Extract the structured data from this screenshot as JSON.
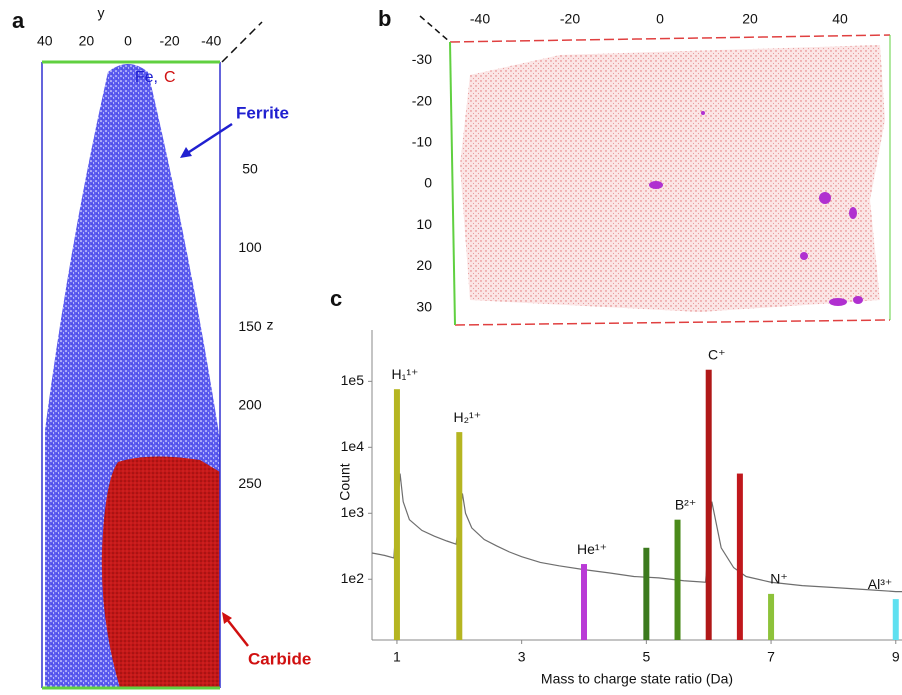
{
  "panel_a": {
    "label": "a",
    "y_axis_title": "y",
    "y_ticks": [
      40,
      20,
      0,
      -20,
      -40
    ],
    "z_axis_title": "z",
    "z_ticks": [
      50,
      100,
      150,
      200,
      250
    ],
    "legend_fe": "Fe,",
    "legend_c": "C",
    "annotation_ferrite": "Ferrite",
    "annotation_carbide": "Carbide"
  },
  "panel_b": {
    "label": "b",
    "x_ticks": [
      -40,
      -20,
      0,
      20,
      40
    ],
    "y_ticks": [
      -30,
      -20,
      -10,
      0,
      10,
      20,
      30
    ]
  },
  "chart_data": {
    "type": "line",
    "panel_label": "c",
    "x_label": "Mass to charge state ratio (Da)",
    "y_label": "Count",
    "log_y": true,
    "xlim": [
      0.6,
      9.1
    ],
    "xticks": [
      1,
      3,
      5,
      7,
      9
    ],
    "ylim": [
      12,
      600000
    ],
    "yticks": [
      {
        "value": 100,
        "label": "1e2"
      },
      {
        "value": 1000,
        "label": "1e3"
      },
      {
        "value": 10000,
        "label": "1e4"
      },
      {
        "value": 100000,
        "label": "1e5"
      }
    ],
    "series": [
      {
        "color": "#6e6e6e",
        "x": [
          0.6,
          0.8,
          0.95,
          1.05,
          1.1,
          1.2,
          1.4,
          1.6,
          1.8,
          1.95,
          2.05,
          2.1,
          2.2,
          2.4,
          2.6,
          2.8,
          3.0,
          3.3,
          3.6,
          4.0,
          4.4,
          4.8,
          5.2,
          5.6,
          5.95,
          6.05,
          6.2,
          6.4,
          6.6,
          7.0,
          7.5,
          8.0,
          8.5,
          9.0,
          9.1
        ],
        "values": [
          250,
          230,
          210,
          4000,
          1500,
          800,
          550,
          450,
          380,
          340,
          2000,
          1000,
          600,
          400,
          320,
          260,
          220,
          180,
          160,
          140,
          125,
          110,
          105,
          95,
          90,
          1500,
          300,
          150,
          110,
          90,
          80,
          75,
          70,
          65,
          65
        ]
      }
    ],
    "peaks": {
      "x": [
        1,
        2,
        4,
        5,
        5.5,
        6,
        6.5,
        7,
        9
      ],
      "values": [
        76000,
        17000,
        170,
        300,
        800,
        150000,
        4000,
        60,
        50
      ],
      "labels": [
        "H₁¹⁺",
        "H₂¹⁺",
        "He¹⁺",
        null,
        "B²⁺",
        "C⁺",
        null,
        "N⁺",
        "Al³⁺"
      ],
      "colors": [
        "#b5b521",
        "#b5b521",
        "#b93ad6",
        "#3c7a1e",
        "#4a8a1a",
        "#b01818",
        "#c0181c",
        "#8dc23a",
        "#5fe0f0"
      ]
    }
  }
}
